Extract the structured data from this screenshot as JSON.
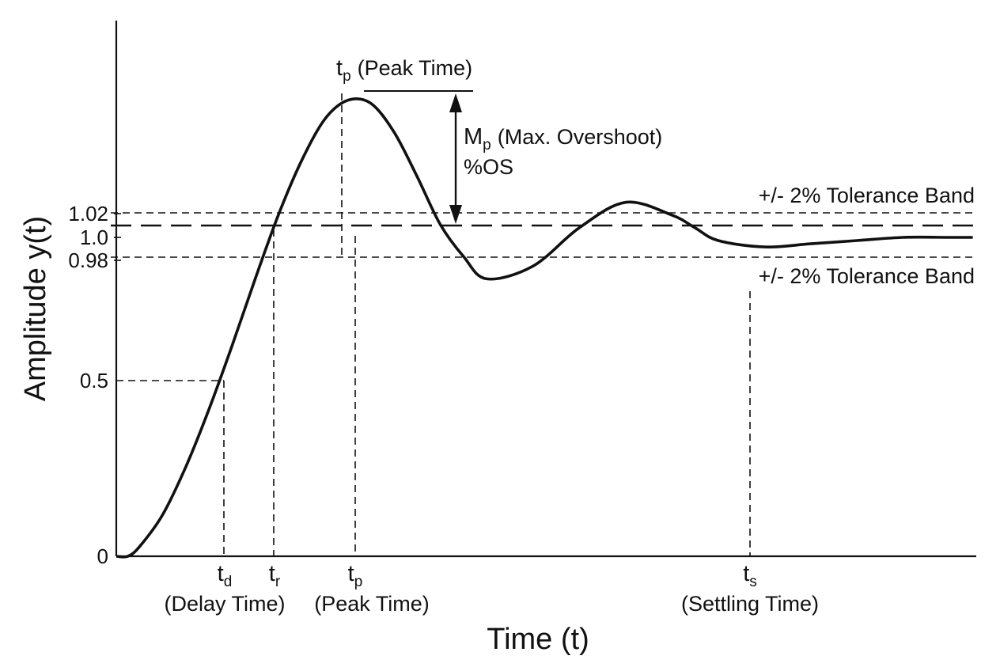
{
  "chart_data": {
    "type": "line",
    "xlabel": "Time (t)",
    "ylabel": "Amplitude y(t)",
    "yticks": [
      "0",
      "0.5",
      "0.98",
      "1.0",
      "1.02"
    ],
    "ylim": [
      0,
      1.5
    ],
    "grid": false,
    "series": [
      {
        "x": [
          0.0,
          0.05,
          0.1,
          0.2,
          0.3,
          0.4,
          0.5,
          0.6,
          0.7,
          0.8,
          0.9,
          1.0,
          1.1,
          1.2,
          1.3,
          1.4,
          1.5,
          1.6,
          1.8,
          2.0,
          2.2,
          2.4,
          2.5,
          2.6,
          2.8,
          3.0,
          3.2,
          3.4,
          3.6,
          3.7
        ],
        "values": [
          0.0,
          0.0,
          0.03,
          0.13,
          0.28,
          0.46,
          0.66,
          0.87,
          1.07,
          1.24,
          1.37,
          1.43,
          1.42,
          1.33,
          1.19,
          1.04,
          0.94,
          0.87,
          0.91,
          1.03,
          1.11,
          1.07,
          1.03,
          0.99,
          0.97,
          0.98,
          0.99,
          1.0,
          1.0,
          1.0
        ]
      }
    ],
    "reference_lines": [
      {
        "y": 1.02,
        "style": "dashed",
        "label": "+/- 2% Tolerance Band"
      },
      {
        "y": 1.0,
        "style": "long-dashed",
        "label": ""
      },
      {
        "y": 0.98,
        "style": "dashed",
        "label": "+/- 2% Tolerance Band"
      }
    ],
    "markers": [
      {
        "symbol": "t",
        "sub": "d",
        "caption": "(Delay Time)"
      },
      {
        "symbol": "t",
        "sub": "r",
        "caption": ""
      },
      {
        "symbol": "t",
        "sub": "p",
        "caption": "(Peak Time)"
      },
      {
        "symbol": "t",
        "sub": "s",
        "caption": "(Settling Time)"
      }
    ],
    "peak_annotation": {
      "symbol": "t",
      "sub": "p",
      "caption": "(Peak Time)"
    },
    "overshoot_annotation": {
      "symbol": "M",
      "sub": "p",
      "caption": "(Max. Overshoot)",
      "line2": "%OS"
    }
  }
}
